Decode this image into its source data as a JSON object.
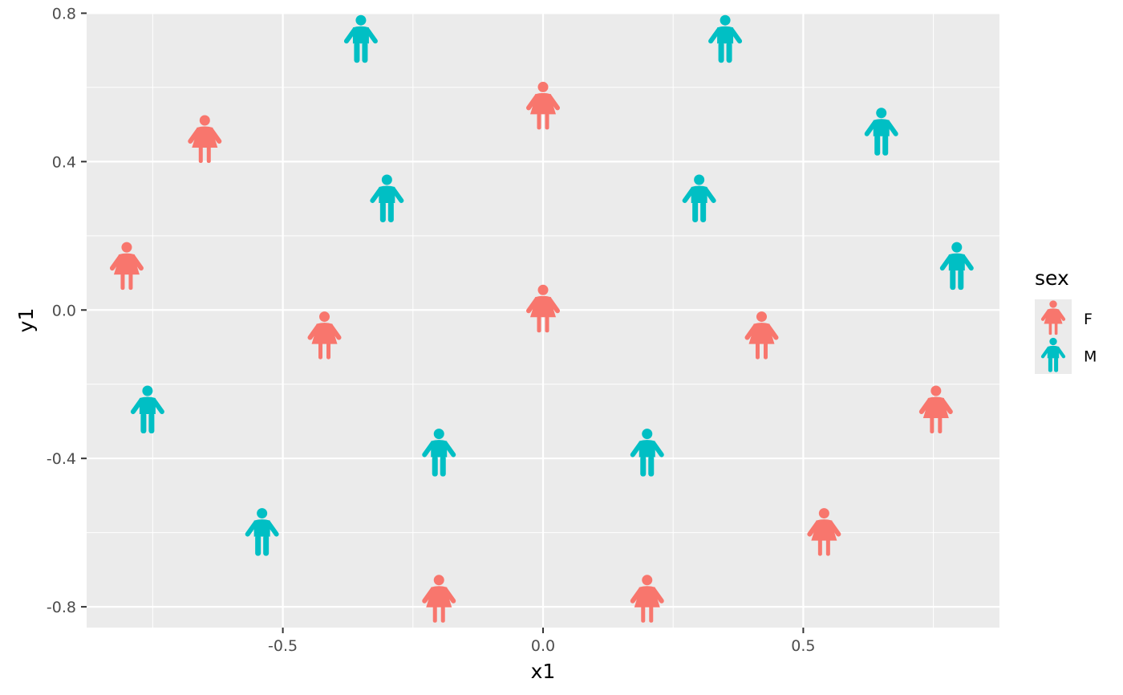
{
  "chart_data": {
    "type": "scatter",
    "title": "",
    "xlabel": "x1",
    "ylabel": "y1",
    "xlim": [
      -0.877,
      0.877
    ],
    "ylim": [
      -0.856,
      0.801
    ],
    "x_ticks": [
      -0.5,
      0.0,
      0.5
    ],
    "x_tick_labels": [
      "-0.5",
      "0.0",
      "0.5"
    ],
    "y_ticks": [
      -0.8,
      -0.4,
      0.0,
      0.4,
      0.8
    ],
    "y_tick_labels": [
      "-0.8",
      "-0.4",
      "0.0",
      "0.4",
      "0.8"
    ],
    "grid": true,
    "marker": "person-pictogram",
    "legend": {
      "title": "sex",
      "position": "right",
      "entries": [
        {
          "label": "F",
          "color": "#F8766D",
          "icon": "female-icon"
        },
        {
          "label": "M",
          "color": "#00BFC4",
          "icon": "male-icon"
        }
      ]
    },
    "series": [
      {
        "name": "F",
        "color": "#F8766D",
        "x": [
          0.0,
          -0.65,
          -0.8,
          -0.42,
          0.0,
          0.42,
          0.755,
          0.54,
          -0.2,
          0.2
        ],
        "y": [
          0.547,
          0.457,
          0.115,
          -0.072,
          0.0,
          -0.072,
          -0.272,
          -0.602,
          -0.782,
          -0.782
        ]
      },
      {
        "name": "M",
        "color": "#00BFC4",
        "x": [
          -0.35,
          0.35,
          -0.3,
          0.3,
          0.65,
          0.795,
          -0.76,
          -0.54,
          -0.2,
          0.2
        ],
        "y": [
          0.727,
          0.727,
          0.297,
          0.297,
          0.477,
          0.115,
          -0.272,
          -0.602,
          -0.388,
          -0.388
        ]
      }
    ]
  }
}
